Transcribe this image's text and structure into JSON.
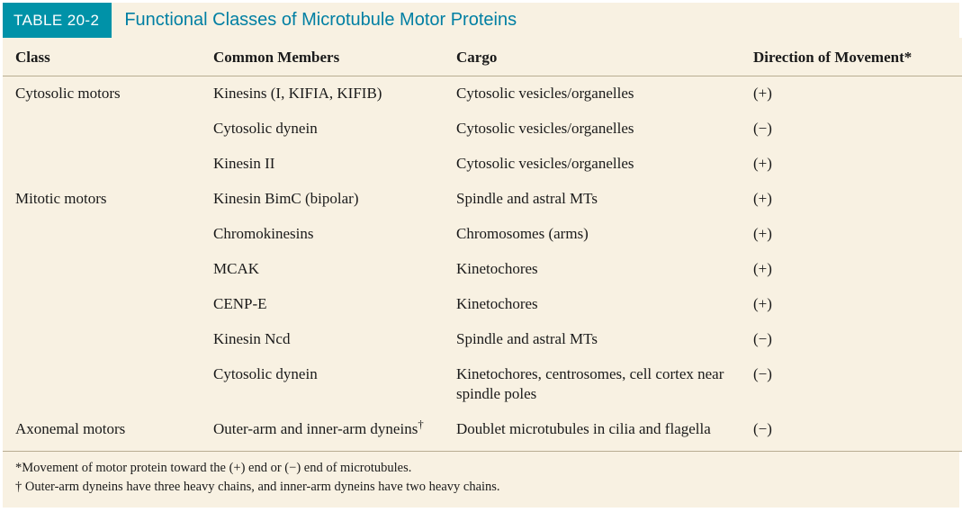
{
  "colors": {
    "panel_bg": "#f8f1e2",
    "badge_bg": "#0092a8",
    "badge_text": "#ffffff",
    "title_text": "#007fa3",
    "rule": "#b9ad92",
    "body_text": "#1a1a1a"
  },
  "typography": {
    "serif_family": "Georgia, Times New Roman, serif",
    "sans_family": "Arial, Helvetica, sans-serif",
    "title_size_pt": 15,
    "header_size_pt": 13,
    "body_size_pt": 13,
    "footnote_size_pt": 11
  },
  "table": {
    "badge": "TABLE 20-2",
    "title": "Functional Classes of Microtubule Motor Proteins",
    "columns": [
      {
        "label": "Class"
      },
      {
        "label": "Common Members"
      },
      {
        "label": "Cargo"
      },
      {
        "label": "Direction of Movement*"
      }
    ],
    "rows": [
      {
        "class": "Cytosolic motors",
        "member": "Kinesins (I, KIFIA, KIFIB)",
        "cargo": "Cytosolic vesicles/organelles",
        "dir": "(+)"
      },
      {
        "class": "",
        "member": "Cytosolic dynein",
        "cargo": "Cytosolic vesicles/organelles",
        "dir": "(−)"
      },
      {
        "class": "",
        "member": "Kinesin II",
        "cargo": "Cytosolic vesicles/organelles",
        "dir": "(+)"
      },
      {
        "class": "Mitotic motors",
        "member": "Kinesin BimC (bipolar)",
        "cargo": "Spindle and astral MTs",
        "dir": "(+)"
      },
      {
        "class": "",
        "member": "Chromokinesins",
        "cargo": "Chromosomes (arms)",
        "dir": "(+)"
      },
      {
        "class": "",
        "member": "MCAK",
        "cargo": "Kinetochores",
        "dir": "(+)"
      },
      {
        "class": "",
        "member": "CENP-E",
        "cargo": "Kinetochores",
        "dir": "(+)"
      },
      {
        "class": "",
        "member": "Kinesin Ncd",
        "cargo": "Spindle and astral MTs",
        "dir": "(−)"
      },
      {
        "class": "",
        "member": "Cytosolic dynein",
        "cargo": "Kinetochores, centrosomes, cell cortex near spindle poles",
        "dir": "(−)"
      },
      {
        "class": "Axonemal motors",
        "member": "Outer-arm and inner-arm dyneins",
        "member_sup": "†",
        "cargo": "Doublet microtubules in cilia and flagella",
        "dir": "(−)"
      }
    ],
    "footnotes": [
      "*Movement of motor protein toward the (+) end or (−) end of microtubules.",
      "† Outer-arm dyneins have three heavy chains, and inner-arm dyneins have two heavy chains."
    ]
  }
}
